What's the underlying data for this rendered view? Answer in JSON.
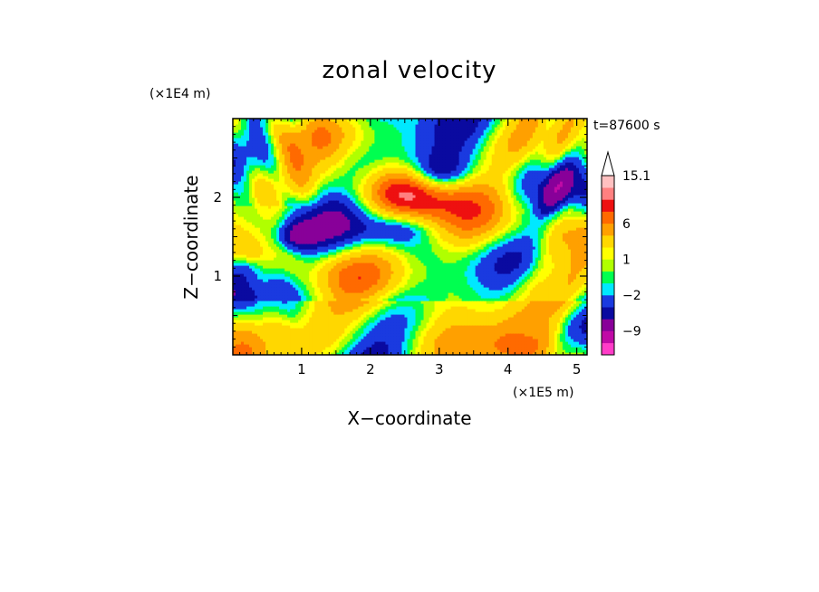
{
  "chart_data": {
    "type": "heatmap",
    "title": "zonal velocity",
    "xlabel": "X−coordinate",
    "ylabel": "Z−coordinate",
    "x_unit": "(×1E5 m)",
    "y_unit": "(×1E4 m)",
    "annotation": "t=87600 s",
    "xlim": [
      0,
      5.15
    ],
    "ylim": [
      0,
      3.0
    ],
    "x_ticks": [
      "1",
      "2",
      "3",
      "4",
      "5"
    ],
    "y_ticks": [
      "1",
      "2"
    ],
    "colorbar": {
      "tick_labels": [
        "15.1",
        "6",
        "1",
        "−2",
        "−9"
      ],
      "levels": [
        -15,
        -12,
        -9,
        -6,
        -4,
        -2,
        -1,
        0,
        1,
        2,
        4,
        6,
        8,
        10,
        12,
        15.1
      ],
      "colors": [
        "#ff3cc8",
        "#c00aa6",
        "#880099",
        "#0a0aa0",
        "#1a3ae0",
        "#00e8ff",
        "#00ff50",
        "#b0ff00",
        "#ffff00",
        "#ffd700",
        "#ffa000",
        "#ff6a00",
        "#ee1010",
        "#ff8080",
        "#ffc0c0"
      ],
      "extend": "max"
    }
  }
}
